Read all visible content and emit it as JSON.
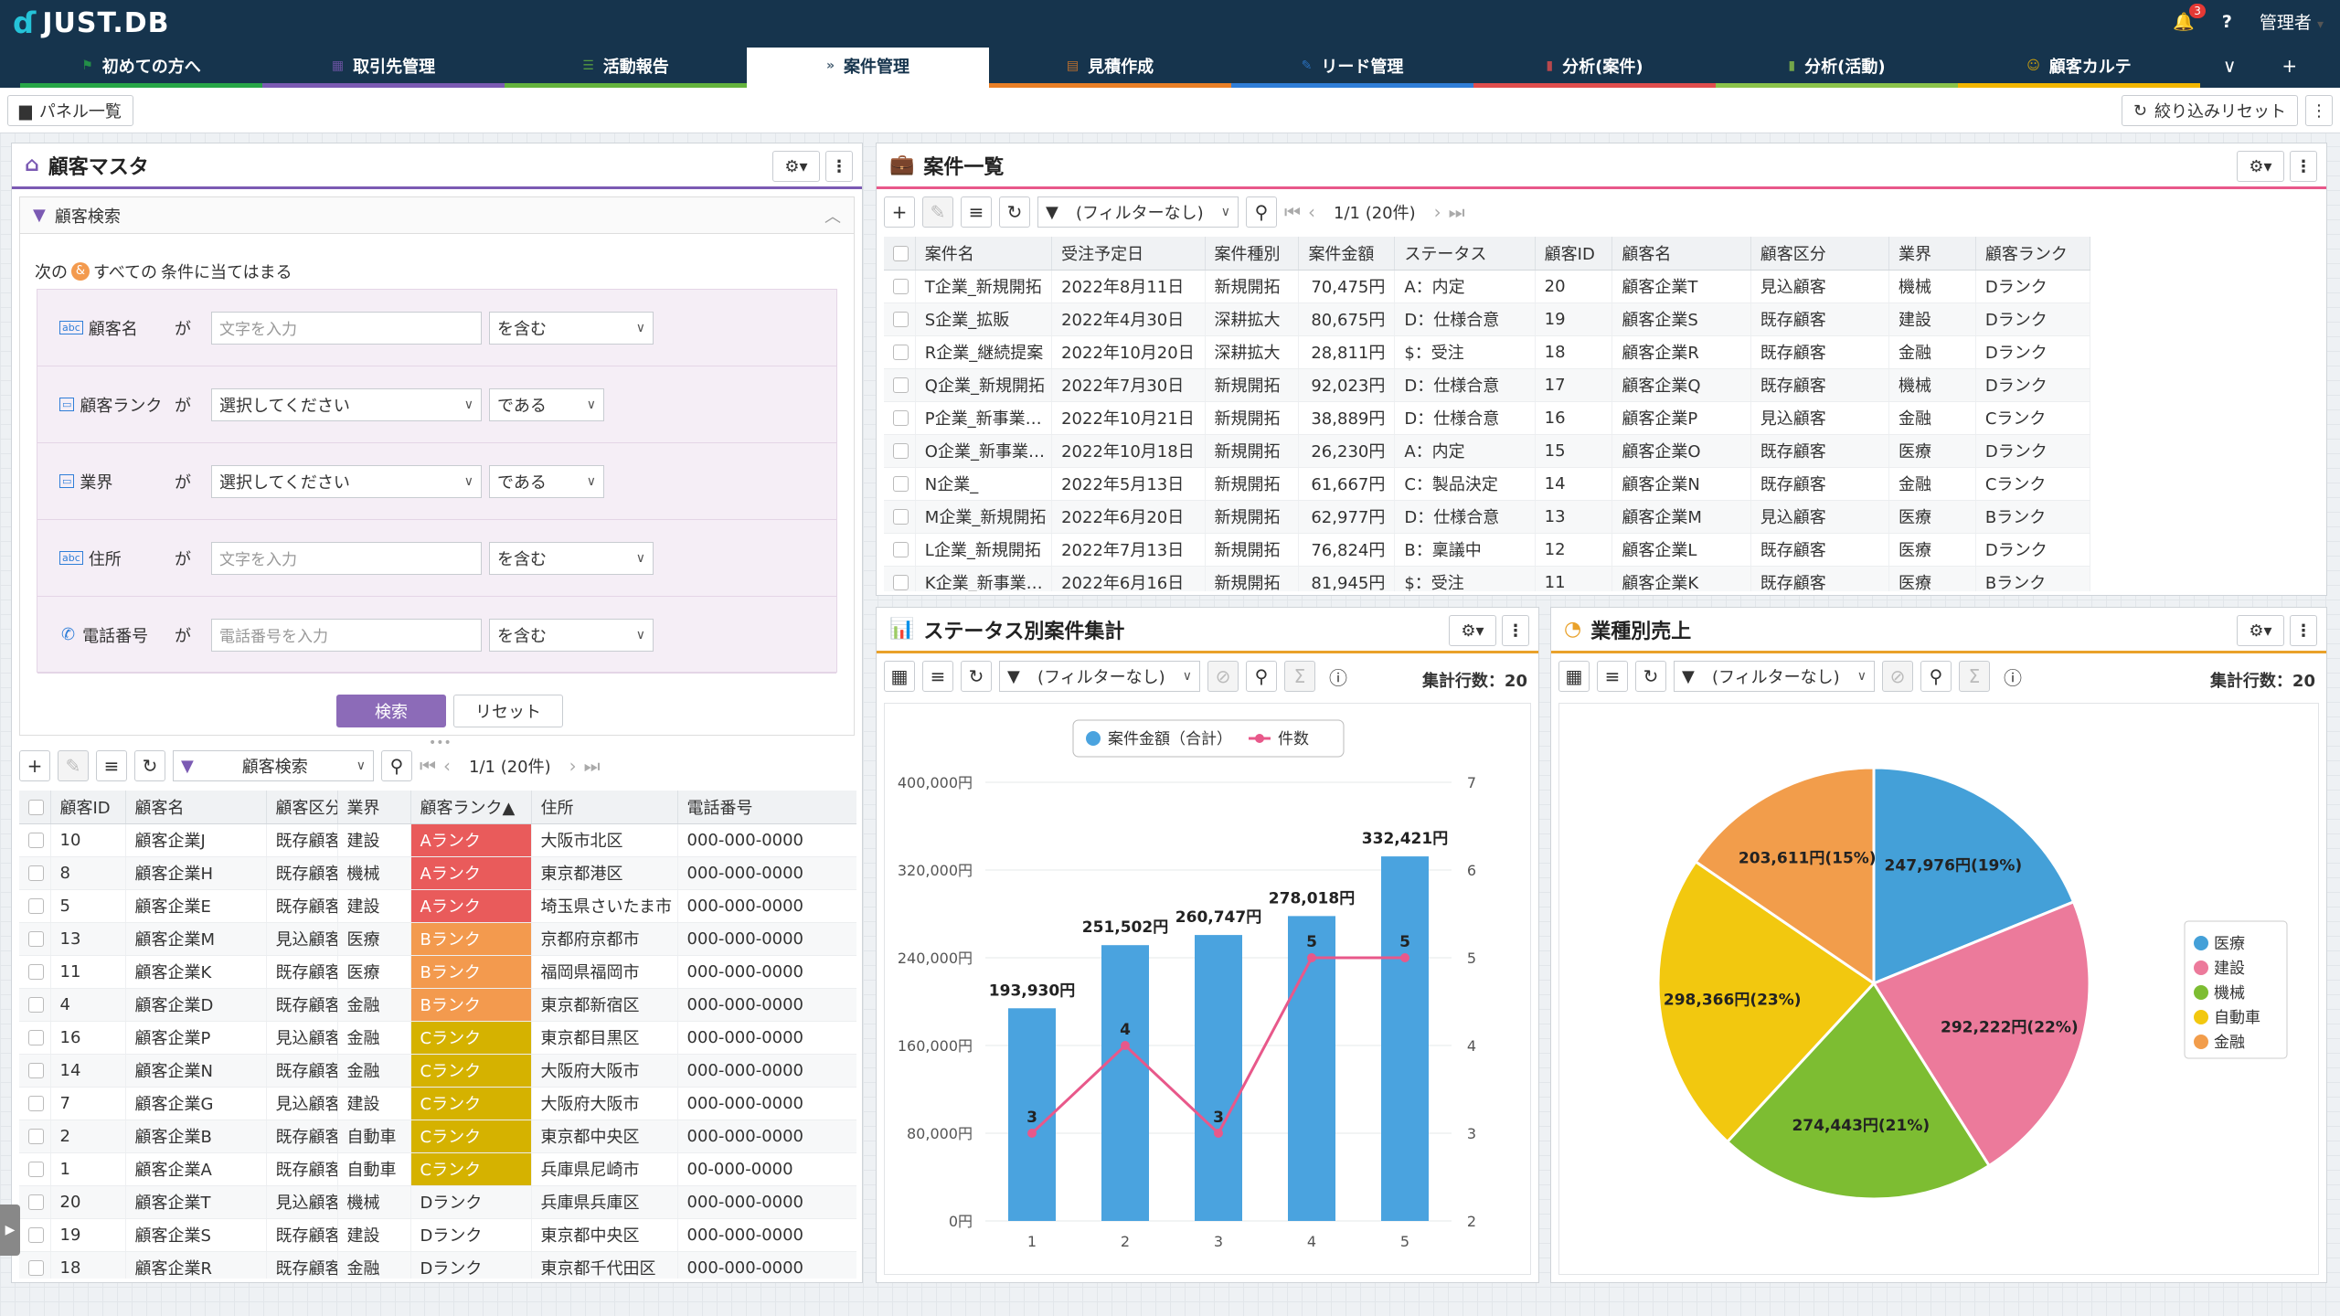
{
  "app": {
    "logo": "JUST.DB",
    "notif_count": "3",
    "help": "?",
    "user": "管理者"
  },
  "tabs": [
    {
      "label": "初めての方へ",
      "icon": "flag-icon",
      "color": "#27a647"
    },
    {
      "label": "取引先管理",
      "icon": "building-icon",
      "color": "#7b5ab3"
    },
    {
      "label": "活動報告",
      "icon": "stack-icon",
      "color": "#64b33d"
    },
    {
      "label": "案件管理",
      "icon": "chevron-double-icon",
      "color": "#ffffff"
    },
    {
      "label": "見積作成",
      "icon": "document-icon",
      "color": "#e97f26"
    },
    {
      "label": "リード管理",
      "icon": "edit-icon",
      "color": "#2f7ed8"
    },
    {
      "label": "分析(案件)",
      "icon": "bar-chart-icon",
      "color": "#e14d4d"
    },
    {
      "label": "分析(活動)",
      "icon": "bar-chart-icon",
      "color": "#8bc34a"
    },
    {
      "label": "顧客カルテ",
      "icon": "user-icon",
      "color": "#f2b600"
    }
  ],
  "subbar": {
    "panel_list": "パネル一覧",
    "reset_filter": "絞り込みリセット"
  },
  "customer_master": {
    "title": "顧客マスタ",
    "search_title": "顧客検索",
    "condition_prefix": "次の",
    "condition_mid": "すべての",
    "condition_suffix": "条件に当てはまる",
    "filters": [
      {
        "label": "顧客名",
        "ga": "が",
        "type": "text",
        "placeholder": "文字を入力",
        "op": "を含む"
      },
      {
        "label": "顧客ランク",
        "ga": "が",
        "type": "select",
        "placeholder": "選択してください",
        "op": "である"
      },
      {
        "label": "業界",
        "ga": "が",
        "type": "select",
        "placeholder": "選択してください",
        "op": "である"
      },
      {
        "label": "住所",
        "ga": "が",
        "type": "text",
        "placeholder": "文字を入力",
        "op": "を含む"
      },
      {
        "label": "電話番号",
        "ga": "が",
        "type": "text",
        "placeholder": "電話番号を入力",
        "op": "を含む"
      }
    ],
    "search_btn": "検索",
    "reset_btn": "リセット",
    "view_select": "顧客検索",
    "pager": "1/1 (20件)",
    "columns": [
      "顧客ID",
      "顧客名",
      "顧客区分",
      "業界",
      "顧客ランク▲",
      "住所",
      "電話番号"
    ],
    "rows": [
      [
        "10",
        "顧客企業J",
        "既存顧客",
        "建設",
        "Aランク",
        "大阪市北区",
        "000-000-0000"
      ],
      [
        "8",
        "顧客企業H",
        "既存顧客",
        "機械",
        "Aランク",
        "東京都港区",
        "000-000-0000"
      ],
      [
        "5",
        "顧客企業E",
        "既存顧客",
        "建設",
        "Aランク",
        "埼玉県さいたま市",
        "000-000-0000"
      ],
      [
        "13",
        "顧客企業M",
        "見込顧客",
        "医療",
        "Bランク",
        "京都府京都市",
        "000-000-0000"
      ],
      [
        "11",
        "顧客企業K",
        "既存顧客",
        "医療",
        "Bランク",
        "福岡県福岡市",
        "000-000-0000"
      ],
      [
        "4",
        "顧客企業D",
        "既存顧客",
        "金融",
        "Bランク",
        "東京都新宿区",
        "000-000-0000"
      ],
      [
        "16",
        "顧客企業P",
        "見込顧客",
        "金融",
        "Cランク",
        "東京都目黒区",
        "000-000-0000"
      ],
      [
        "14",
        "顧客企業N",
        "既存顧客",
        "金融",
        "Cランク",
        "大阪府大阪市",
        "000-000-0000"
      ],
      [
        "7",
        "顧客企業G",
        "見込顧客",
        "建設",
        "Cランク",
        "大阪府大阪市",
        "000-000-0000"
      ],
      [
        "2",
        "顧客企業B",
        "既存顧客",
        "自動車",
        "Cランク",
        "東京都中央区",
        "000-000-0000"
      ],
      [
        "1",
        "顧客企業A",
        "既存顧客",
        "自動車",
        "Cランク",
        "兵庫県尼崎市",
        "00-000-0000"
      ],
      [
        "20",
        "顧客企業T",
        "見込顧客",
        "機械",
        "Dランク",
        "兵庫県兵庫区",
        "000-000-0000"
      ],
      [
        "19",
        "顧客企業S",
        "既存顧客",
        "建設",
        "Dランク",
        "東京都中央区",
        "000-000-0000"
      ],
      [
        "18",
        "顧客企業R",
        "既存顧客",
        "金融",
        "Dランク",
        "東京都千代田区",
        "000-000-0000"
      ]
    ]
  },
  "deals": {
    "title": "案件一覧",
    "filter": "(フィルターなし)",
    "pager": "1/1 (20件)",
    "columns": [
      "案件名",
      "受注予定日",
      "案件種別",
      "案件金額",
      "ステータス",
      "顧客ID",
      "顧客名",
      "顧客区分",
      "業界",
      "顧客ランク"
    ],
    "rows": [
      [
        "T企業_新規開拓",
        "2022年8月11日",
        "新規開拓",
        "70,475円",
        "A：内定",
        "20",
        "顧客企業T",
        "見込顧客",
        "機械",
        "Dランク"
      ],
      [
        "S企業_拡販",
        "2022年4月30日",
        "深耕拡大",
        "80,675円",
        "D：仕様合意",
        "19",
        "顧客企業S",
        "既存顧客",
        "建設",
        "Dランク"
      ],
      [
        "R企業_継続提案",
        "2022年10月20日",
        "深耕拡大",
        "28,811円",
        "$：受注",
        "18",
        "顧客企業R",
        "既存顧客",
        "金融",
        "Dランク"
      ],
      [
        "Q企業_新規開拓",
        "2022年7月30日",
        "新規開拓",
        "92,023円",
        "D：仕様合意",
        "17",
        "顧客企業Q",
        "既存顧客",
        "機械",
        "Dランク"
      ],
      [
        "P企業_新事業…",
        "2022年10月21日",
        "新規開拓",
        "38,889円",
        "D：仕様合意",
        "16",
        "顧客企業P",
        "見込顧客",
        "金融",
        "Cランク"
      ],
      [
        "O企業_新事業…",
        "2022年10月18日",
        "新規開拓",
        "26,230円",
        "A：内定",
        "15",
        "顧客企業O",
        "既存顧客",
        "医療",
        "Dランク"
      ],
      [
        "N企業_",
        "2022年5月13日",
        "新規開拓",
        "61,667円",
        "C：製品決定",
        "14",
        "顧客企業N",
        "既存顧客",
        "金融",
        "Cランク"
      ],
      [
        "M企業_新規開拓",
        "2022年6月20日",
        "新規開拓",
        "62,977円",
        "D：仕様合意",
        "13",
        "顧客企業M",
        "見込顧客",
        "医療",
        "Bランク"
      ],
      [
        "L企業_新規開拓",
        "2022年7月13日",
        "新規開拓",
        "76,824円",
        "B：稟議中",
        "12",
        "顧客企業L",
        "既存顧客",
        "医療",
        "Dランク"
      ],
      [
        "K企業_新事業…",
        "2022年6月16日",
        "新規開拓",
        "81,945円",
        "$：受注",
        "11",
        "顧客企業K",
        "既存顧客",
        "医療",
        "Bランク"
      ]
    ]
  },
  "status_chart": {
    "title": "ステータス別案件集計",
    "filter": "(フィルターなし)",
    "count_label": "集計行数：20"
  },
  "industry_chart": {
    "title": "業種別売上",
    "filter": "(フィルターなし)",
    "count_label": "集計行数：20"
  },
  "chart_data": [
    {
      "type": "bar",
      "title": "",
      "categories": [
        "1",
        "2",
        "3",
        "4",
        "5"
      ],
      "series": [
        {
          "name": "案件金額（合計）",
          "type": "bar",
          "values": [
            193930,
            251502,
            260747,
            278018,
            332421
          ],
          "labels": [
            "193,930円",
            "251,502円",
            "260,747円",
            "278,018円",
            "332,421円"
          ],
          "color": "#4aa3df"
        },
        {
          "name": "件数",
          "type": "line",
          "values": [
            3,
            4,
            3,
            5,
            5
          ],
          "color": "#e8588a"
        }
      ],
      "ylim": [
        0,
        400000
      ],
      "y_ticks": [
        "0円",
        "80,000円",
        "160,000円",
        "240,000円",
        "320,000円",
        "400,000円"
      ],
      "y2lim": [
        2,
        7
      ],
      "y2_ticks": [
        "2",
        "3",
        "4",
        "5",
        "6",
        "7"
      ],
      "legend": "top",
      "grid": true
    },
    {
      "type": "pie",
      "title": "",
      "slices": [
        {
          "name": "医療",
          "value": 247976,
          "label": "247,976円(19%)",
          "color": "#44a0d8"
        },
        {
          "name": "建設",
          "value": 292222,
          "label": "292,222円(22%)",
          "color": "#ec7a9b"
        },
        {
          "name": "機械",
          "value": 274443,
          "label": "274,443円(21%)",
          "color": "#7dbd32"
        },
        {
          "name": "自動車",
          "value": 298366,
          "label": "298,366円(23%)",
          "color": "#f2c80f"
        },
        {
          "name": "金融",
          "value": 203611,
          "label": "203,611円(15%)",
          "color": "#f29d4b"
        }
      ],
      "legend": "right"
    }
  ]
}
